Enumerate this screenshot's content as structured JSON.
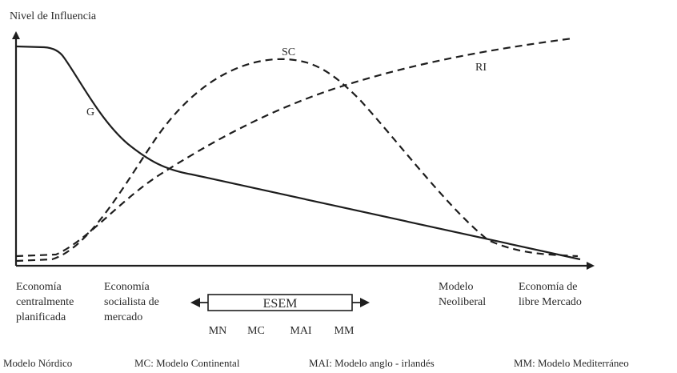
{
  "y_axis_label": "Nivel de Influencia",
  "curves": {
    "g": "G",
    "sc": "SC",
    "ri": "RI"
  },
  "x_labels": {
    "economia_planificada": [
      "Economía",
      "centralmente",
      "planificada"
    ],
    "economia_socialista": [
      "Economía",
      "socialista de",
      "mercado"
    ],
    "modelo_neoliberal": [
      "Modelo",
      "Neoliberal"
    ],
    "economia_libre": [
      "Economía de",
      "libre Mercado"
    ]
  },
  "esem": {
    "label": "ESEM",
    "models": [
      "MN",
      "MC",
      "MAI",
      "MM"
    ]
  },
  "legend": [
    "Modelo Nórdico",
    "MC: Modelo Continental",
    "MAI: Modelo anglo - irlandés",
    "MM: Modelo Mediterráneo"
  ]
}
